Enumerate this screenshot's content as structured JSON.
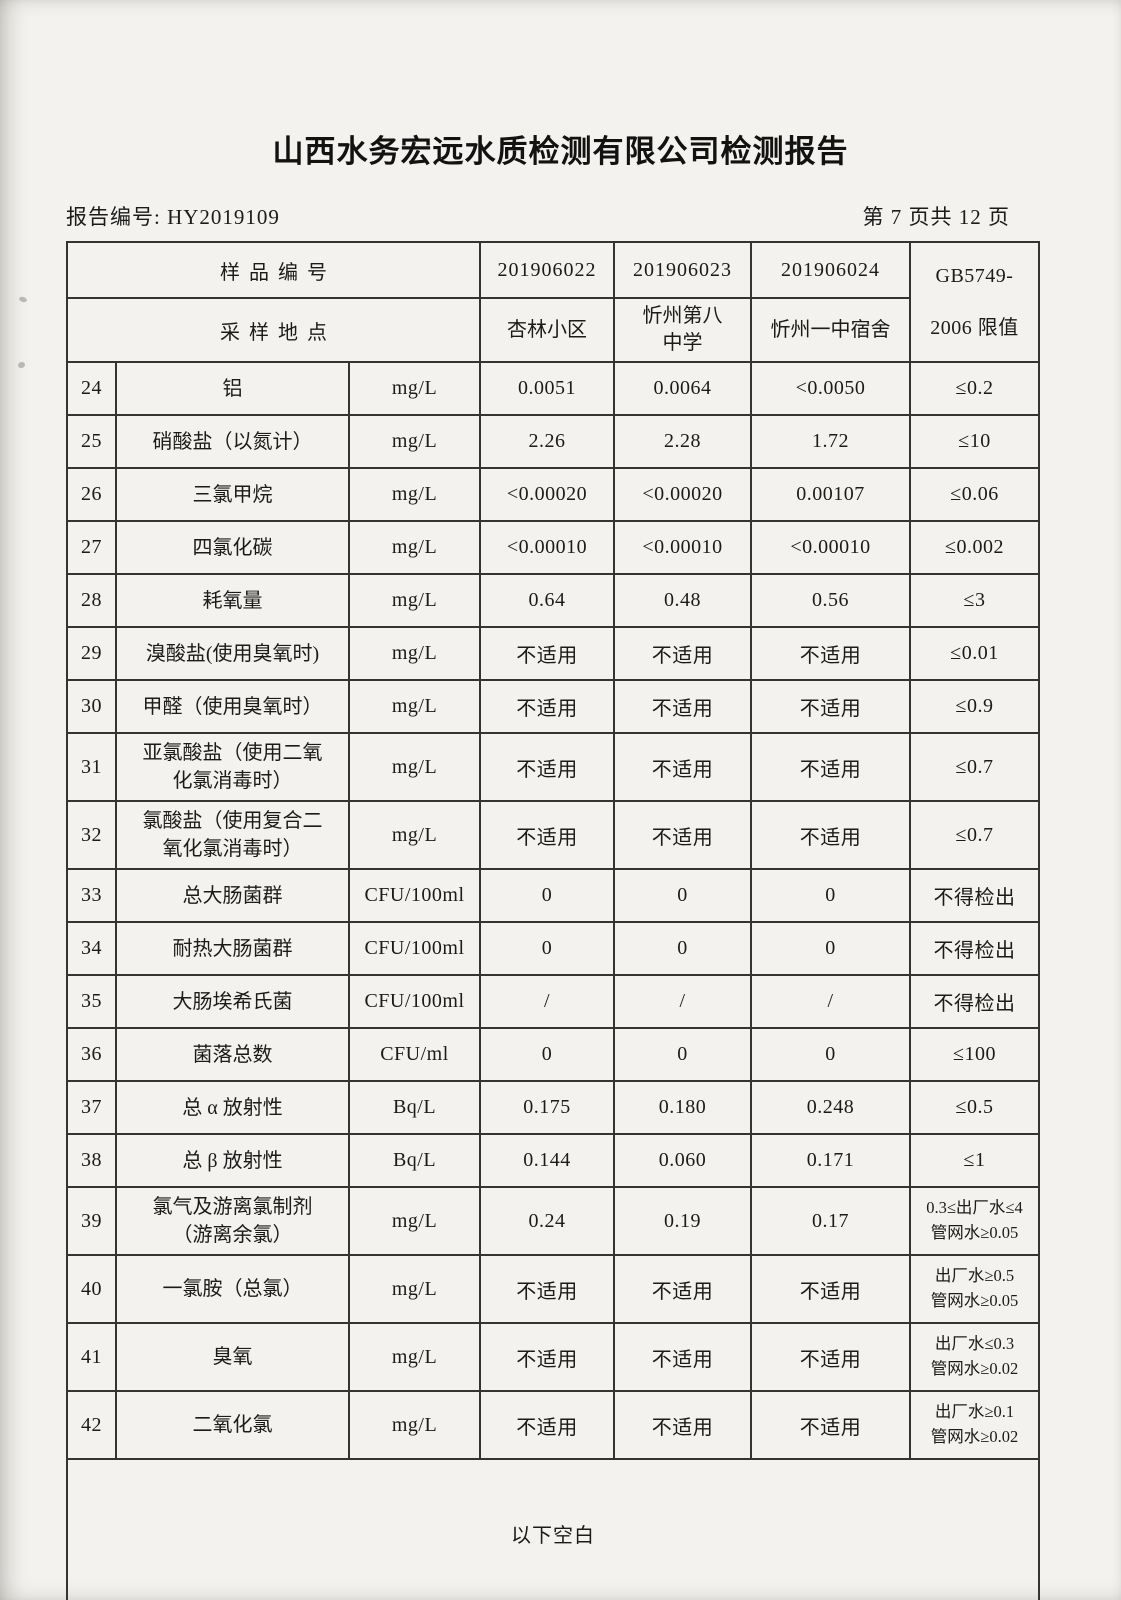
{
  "page": {
    "title": "山西水务宏远水质检测有限公司检测报告",
    "report_no_label": "报告编号:",
    "report_no": "HY2019109",
    "page_indicator": "第 7 页共 12 页"
  },
  "table": {
    "header": {
      "sample_id_label": "样品编号",
      "sampling_site_label": "采样地点",
      "sample_ids": [
        "201906022",
        "201906023",
        "201906024"
      ],
      "sites": [
        "杏林小区",
        "忻州第八\n中学",
        "忻州一中宿舍"
      ],
      "standard": "GB5749-\n2006 限值"
    },
    "rows": [
      {
        "no": "24",
        "name": "铝",
        "unit": "mg/L",
        "values": [
          "0.0051",
          "0.0064",
          "<0.0050"
        ],
        "limit": "≤0.2"
      },
      {
        "no": "25",
        "name": "硝酸盐（以氮计）",
        "unit": "mg/L",
        "values": [
          "2.26",
          "2.28",
          "1.72"
        ],
        "limit": "≤10"
      },
      {
        "no": "26",
        "name": "三氯甲烷",
        "unit": "mg/L",
        "values": [
          "<0.00020",
          "<0.00020",
          "0.00107"
        ],
        "limit": "≤0.06"
      },
      {
        "no": "27",
        "name": "四氯化碳",
        "unit": "mg/L",
        "values": [
          "<0.00010",
          "<0.00010",
          "<0.00010"
        ],
        "limit": "≤0.002"
      },
      {
        "no": "28",
        "name": "耗氧量",
        "unit": "mg/L",
        "values": [
          "0.64",
          "0.48",
          "0.56"
        ],
        "limit": "≤3"
      },
      {
        "no": "29",
        "name": "溴酸盐(使用臭氧时)",
        "unit": "mg/L",
        "values": [
          "不适用",
          "不适用",
          "不适用"
        ],
        "limit": "≤0.01"
      },
      {
        "no": "30",
        "name": "甲醛（使用臭氧时）",
        "unit": "mg/L",
        "values": [
          "不适用",
          "不适用",
          "不适用"
        ],
        "limit": "≤0.9"
      },
      {
        "no": "31",
        "name": "亚氯酸盐（使用二氧\n化氯消毒时）",
        "unit": "mg/L",
        "values": [
          "不适用",
          "不适用",
          "不适用"
        ],
        "limit": "≤0.7"
      },
      {
        "no": "32",
        "name": "氯酸盐（使用复合二\n氧化氯消毒时）",
        "unit": "mg/L",
        "values": [
          "不适用",
          "不适用",
          "不适用"
        ],
        "limit": "≤0.7"
      },
      {
        "no": "33",
        "name": "总大肠菌群",
        "unit": "CFU/100ml",
        "values": [
          "0",
          "0",
          "0"
        ],
        "limit": "不得检出"
      },
      {
        "no": "34",
        "name": "耐热大肠菌群",
        "unit": "CFU/100ml",
        "values": [
          "0",
          "0",
          "0"
        ],
        "limit": "不得检出"
      },
      {
        "no": "35",
        "name": "大肠埃希氏菌",
        "unit": "CFU/100ml",
        "values": [
          "/",
          "/",
          "/"
        ],
        "limit": "不得检出"
      },
      {
        "no": "36",
        "name": "菌落总数",
        "unit": "CFU/ml",
        "values": [
          "0",
          "0",
          "0"
        ],
        "limit": "≤100"
      },
      {
        "no": "37",
        "name": "总 α 放射性",
        "unit": "Bq/L",
        "values": [
          "0.175",
          "0.180",
          "0.248"
        ],
        "limit": "≤0.5"
      },
      {
        "no": "38",
        "name": "总 β 放射性",
        "unit": "Bq/L",
        "values": [
          "0.144",
          "0.060",
          "0.171"
        ],
        "limit": "≤1"
      },
      {
        "no": "39",
        "name": "氯气及游离氯制剂\n（游离余氯）",
        "unit": "mg/L",
        "values": [
          "0.24",
          "0.19",
          "0.17"
        ],
        "limit": "0.3≤出厂水≤4\n管网水≥0.05"
      },
      {
        "no": "40",
        "name": "一氯胺（总氯）",
        "unit": "mg/L",
        "values": [
          "不适用",
          "不适用",
          "不适用"
        ],
        "limit": "出厂水≥0.5\n管网水≥0.05"
      },
      {
        "no": "41",
        "name": "臭氧",
        "unit": "mg/L",
        "values": [
          "不适用",
          "不适用",
          "不适用"
        ],
        "limit": "出厂水≤0.3\n管网水≥0.02"
      },
      {
        "no": "42",
        "name": "二氧化氯",
        "unit": "mg/L",
        "values": [
          "不适用",
          "不适用",
          "不适用"
        ],
        "limit": "出厂水≥0.1\n管网水≥0.02"
      }
    ],
    "footer_note": "以下空白"
  }
}
